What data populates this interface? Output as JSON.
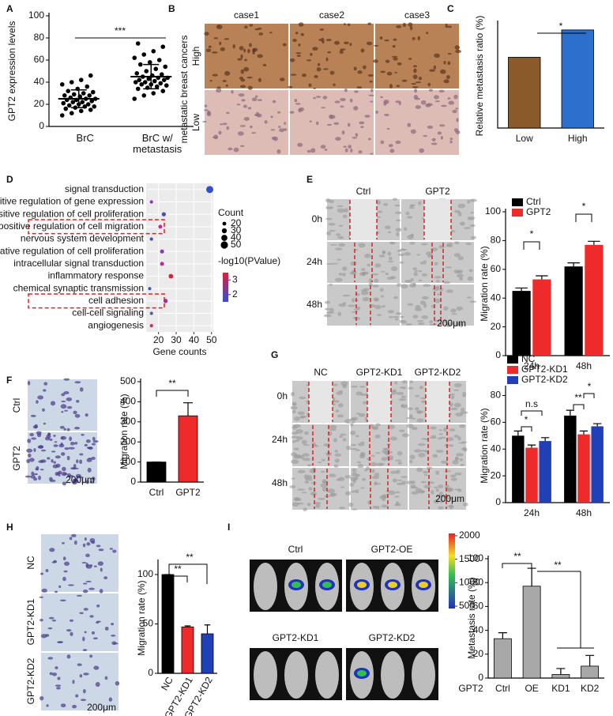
{
  "panel_letters": [
    "A",
    "B",
    "C",
    "D",
    "E",
    "F",
    "G",
    "H",
    "I"
  ],
  "chart_data": [
    {
      "type": "dot",
      "ylabel": "GPT2 expression levels",
      "categories": [
        "BrC",
        "BrC w/ metastasis"
      ],
      "values": [
        [
          10,
          12,
          14,
          15,
          16,
          17,
          18,
          18,
          19,
          20,
          20,
          21,
          22,
          22,
          23,
          24,
          24,
          25,
          25,
          26,
          27,
          28,
          28,
          29,
          30,
          31,
          32,
          34,
          36,
          38,
          40,
          42,
          46
        ],
        [
          25,
          28,
          30,
          32,
          34,
          35,
          36,
          37,
          38,
          38,
          39,
          40,
          40,
          41,
          42,
          42,
          43,
          44,
          44,
          45,
          46,
          47,
          48,
          50,
          52,
          54,
          56,
          58,
          60,
          62,
          65,
          68,
          72,
          75
        ]
      ],
      "means": [
        25,
        45
      ],
      "sds": [
        8,
        11
      ],
      "color": "#000000",
      "ylim": [
        0,
        100
      ],
      "yticks": [
        0,
        20,
        40,
        60,
        80,
        100
      ],
      "annotations": [
        "***"
      ]
    },
    {
      "type": "bar",
      "ylabel": "Relative metastasis ratio (%)",
      "categories": [
        "Low",
        "High"
      ],
      "values": [
        28.5,
        39.5
      ],
      "colors": [
        "#8a5a2b",
        "#2d6fcc"
      ],
      "ylim": [
        0,
        42
      ],
      "annotations": [
        "*"
      ]
    },
    {
      "type": "bubble_h",
      "xlabel": "Gene counts",
      "categories": [
        "signal transduction",
        "positive regulation of gene expression",
        "positive regulation of cell proliferation",
        "positive regulation of cell migration",
        "nervous system development",
        "negative regulation of cell proliferation",
        "intracellular signal transduction",
        "inflammatory response",
        "chemical synaptic transmission",
        "cell adhesion",
        "cell-cell signaling",
        "angiogenesis"
      ],
      "values": [
        49,
        16,
        23,
        21,
        16,
        22,
        22,
        27,
        15,
        24,
        16,
        16
      ],
      "colors": [
        "#3050d0",
        "#8a3ab0",
        "#3a50c8",
        "#d02a8a",
        "#3a50c8",
        "#8a3ab0",
        "#c02a9a",
        "#e0203a",
        "#3a5ac0",
        "#8a3ab0",
        "#4a60b8",
        "#d82a60"
      ],
      "xlim": [
        13,
        51
      ],
      "xticks": [
        20,
        30,
        40,
        50
      ],
      "grid": true,
      "size_legend": {
        "title": "Count",
        "values": [
          20,
          30,
          40,
          50
        ]
      },
      "color_legend": {
        "title": "-log10(PValue)",
        "ticks": [
          3,
          2
        ],
        "lim": [
          1.5,
          3.5
        ],
        "colors": [
          "#3050d0",
          "#e0203a"
        ]
      }
    },
    {
      "type": "grouped_bar",
      "ylabel": "Migration  rate (%)",
      "categories": [
        "24h",
        "48h"
      ],
      "series": [
        {
          "name": "Ctrl",
          "color": "#000000",
          "values": [
            45,
            62
          ],
          "errors": [
            2,
            2.5
          ]
        },
        {
          "name": "GPT2",
          "color": "#ee2a2a",
          "values": [
            53,
            77
          ],
          "errors": [
            2.5,
            2.5
          ]
        }
      ],
      "ylim": [
        0,
        100
      ],
      "yticks": [
        0,
        20,
        40,
        60,
        80,
        100
      ],
      "annotations": [
        "*",
        "*"
      ]
    },
    {
      "type": "bar",
      "ylabel": "Migration rate (%)",
      "categories": [
        "Ctrl",
        "GPT2"
      ],
      "values": [
        100,
        330
      ],
      "errors": [
        0,
        65
      ],
      "colors": [
        "#000000",
        "#ee2a2a"
      ],
      "ylim": [
        0,
        500
      ],
      "yticks": [
        0,
        100,
        200,
        300,
        400,
        500
      ],
      "annotations": [
        "**"
      ]
    },
    {
      "type": "grouped_bar",
      "ylabel": "Migration rate (%)",
      "categories": [
        "24h",
        "48h"
      ],
      "series": [
        {
          "name": "NC",
          "color": "#000000",
          "values": [
            50,
            65
          ],
          "errors": [
            3.5,
            4
          ]
        },
        {
          "name": "GPT2-KD1",
          "color": "#ee2a2a",
          "values": [
            41,
            51
          ],
          "errors": [
            2,
            2.5
          ]
        },
        {
          "name": "GPT2-KD2",
          "color": "#2040b8",
          "values": [
            46,
            57
          ],
          "errors": [
            2.5,
            2
          ]
        }
      ],
      "ylim": [
        0,
        85
      ],
      "yticks": [
        0,
        20,
        40,
        60,
        80
      ],
      "annotations": [
        "*",
        "n.s",
        "**",
        "*"
      ]
    },
    {
      "type": "bar",
      "ylabel": "Migration rate (%)",
      "categories": [
        "NC",
        "GPT2-KD1",
        "GPT2-KD2"
      ],
      "values": [
        100,
        47,
        40
      ],
      "errors": [
        0,
        1,
        9
      ],
      "colors": [
        "#000000",
        "#ee2a2a",
        "#2040b8"
      ],
      "ylim": [
        0,
        112
      ],
      "yticks": [
        0,
        50,
        100
      ],
      "annotations": [
        "**",
        "**"
      ]
    },
    {
      "type": "bar",
      "ylabel": "Metastasis rate (%)",
      "x_prefix": "GPT2",
      "categories": [
        "Ctrl",
        "OE",
        "KD1",
        "KD2"
      ],
      "values": [
        33,
        77,
        3,
        10
      ],
      "errors": [
        5,
        15,
        5,
        9
      ],
      "colors": [
        "#a8a8a8",
        "#a8a8a8",
        "#a8a8a8",
        "#a8a8a8"
      ],
      "ylim": [
        0,
        100
      ],
      "yticks": [
        0,
        20,
        40,
        60,
        80,
        100
      ],
      "annotations": [
        "**",
        "**"
      ]
    }
  ],
  "images": {
    "B": {
      "columns": [
        "case1",
        "case2",
        "case3"
      ],
      "rows": [
        "High",
        "Low"
      ],
      "side_label": "metastatic breast cancers"
    },
    "E": {
      "columns": [
        "Ctrl",
        "GPT2"
      ],
      "rows": [
        "0h",
        "24h",
        "48h"
      ],
      "scale_bar": "200μm"
    },
    "F": {
      "rows": [
        "Ctrl",
        "GPT2"
      ],
      "scale_bar": "200μm"
    },
    "G": {
      "columns": [
        "NC",
        "GPT2-KD1",
        "GPT2-KD2"
      ],
      "rows": [
        "0h",
        "24h",
        "48h"
      ],
      "scale_bar": "200μm"
    },
    "H": {
      "rows": [
        "NC",
        "GPT2-KD1",
        "GPT2-KD2"
      ],
      "scale_bar": "200μm"
    },
    "I": {
      "groups": [
        "Ctrl",
        "GPT2-OE",
        "GPT2-KD1",
        "GPT2-KD2"
      ],
      "colorbar_ticks": [
        2000,
        1500,
        1000,
        500
      ],
      "colorbar_lim": [
        450,
        2050
      ]
    }
  }
}
